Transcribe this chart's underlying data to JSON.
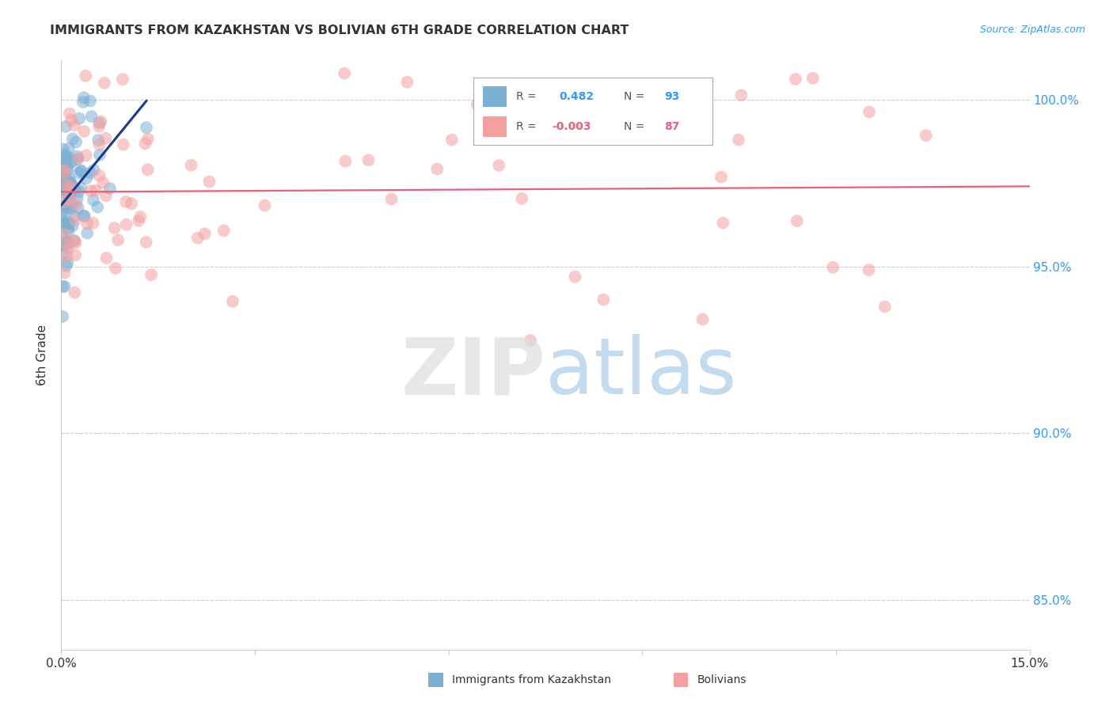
{
  "title": "IMMIGRANTS FROM KAZAKHSTAN VS BOLIVIAN 6TH GRADE CORRELATION CHART",
  "source": "Source: ZipAtlas.com",
  "ylabel": "6th Grade",
  "y_ticks": [
    85.0,
    90.0,
    95.0,
    100.0
  ],
  "y_tick_labels": [
    "85.0%",
    "90.0%",
    "95.0%",
    "100.0%"
  ],
  "xlim": [
    0.0,
    0.15
  ],
  "ylim": [
    83.5,
    101.2
  ],
  "legend_blue_R": "0.482",
  "legend_blue_N": "93",
  "legend_pink_R": "-0.003",
  "legend_pink_N": "87",
  "blue_color": "#7BAFD4",
  "pink_color": "#F4A0A0",
  "blue_line_color": "#1A3A8C",
  "pink_line_color": "#E8607A",
  "background_color": "#FFFFFF",
  "grid_color": "#CCCCCC",
  "text_color": "#333333",
  "axis_label_color": "#3399FF",
  "legend_label_blue_color": "#3399FF",
  "legend_label_pink_color": "#E8607A",
  "bottom_legend_label1": "Immigrants from Kazakhstan",
  "bottom_legend_label2": "Bolivians"
}
